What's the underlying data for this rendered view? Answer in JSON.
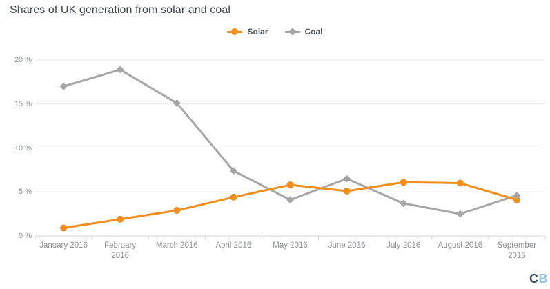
{
  "title": "Shares of UK generation from solar and coal",
  "legend": {
    "items": [
      {
        "label": "Solar"
      },
      {
        "label": "Coal"
      }
    ]
  },
  "logo": {
    "first": "C",
    "second": "B"
  },
  "colors": {
    "solar": "#f28e1c",
    "coal": "#a6a6a6",
    "gridline": "#e6e6e6",
    "axis_line": "#ccd6dd",
    "axis_text": "#8e9399",
    "title_text": "#3a444e",
    "logo_dark": "#3c4d60",
    "logo_light": "#92c7ea"
  },
  "chart_data": {
    "type": "line",
    "title": "Shares of UK generation from solar and coal",
    "categories": [
      "January 2016",
      "February 2016",
      "March 2016",
      "April 2016",
      "May 2016",
      "June 2016",
      "July 2016",
      "August 2016",
      "September 2016"
    ],
    "x_tick_lines": [
      [
        "January 2016"
      ],
      [
        "February",
        "2016"
      ],
      [
        "March 2016"
      ],
      [
        "April 2016"
      ],
      [
        "May 2016"
      ],
      [
        "June 2016"
      ],
      [
        "July 2016"
      ],
      [
        "August 2016"
      ],
      [
        "September",
        "2016"
      ]
    ],
    "series": [
      {
        "name": "Solar",
        "color": "#f28e1c",
        "marker": "circle",
        "values": [
          0.9,
          1.9,
          2.9,
          4.4,
          5.8,
          5.1,
          6.1,
          6.0,
          4.1
        ]
      },
      {
        "name": "Coal",
        "color": "#a6a6a6",
        "marker": "diamond",
        "values": [
          17.0,
          18.9,
          15.1,
          7.4,
          4.1,
          6.5,
          3.7,
          2.5,
          4.6
        ]
      }
    ],
    "xlabel": "",
    "ylabel": "",
    "ylim": [
      0,
      20
    ],
    "yticks": [
      0,
      5,
      10,
      15,
      20
    ],
    "ytick_labels": [
      "0 %",
      "5 %",
      "10 %",
      "15 %",
      "20 %"
    ],
    "grid": true,
    "legend_position": "top-center",
    "unit": "%"
  }
}
